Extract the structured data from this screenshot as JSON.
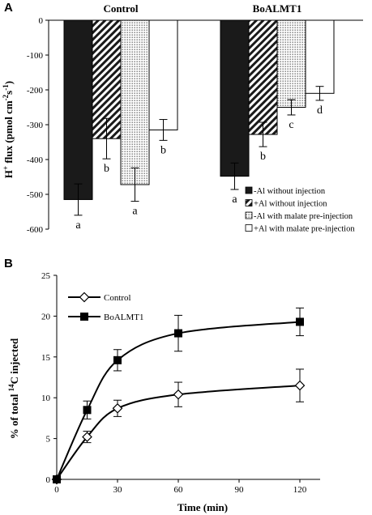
{
  "chart_data": [
    {
      "panel": "A",
      "type": "bar",
      "groups": [
        "Control",
        "BoALMT1"
      ],
      "ylabel": "H⁺ flux (pmol cm⁻²s⁻¹)",
      "ylabel_parts": [
        "H",
        "+",
        " flux (pmol cm",
        "-2",
        "s",
        "-1",
        ")"
      ],
      "ylim": [
        -600,
        0
      ],
      "yticks": [
        0,
        -100,
        -200,
        -300,
        -400,
        -500,
        -600
      ],
      "legend_position": "bottom-right",
      "series": [
        {
          "name": "-Al without injection",
          "color": "#1a1a1a",
          "pattern": "solid",
          "values": [
            -515,
            -448
          ],
          "errors": [
            45,
            38
          ],
          "letters": [
            "a",
            "a"
          ]
        },
        {
          "name": "+Al without injection",
          "color": "#ffffff",
          "pattern": "diagonal-stripes",
          "values": [
            -340,
            -328
          ],
          "errors": [
            58,
            35
          ],
          "letters": [
            "b",
            "b"
          ]
        },
        {
          "name": "-Al with malate pre-injection",
          "color": "#ffffff",
          "pattern": "dots",
          "values": [
            -472,
            -250
          ],
          "errors": [
            48,
            22
          ],
          "letters": [
            "a",
            "c"
          ]
        },
        {
          "name": "+Al with malate pre-injection",
          "color": "#ffffff",
          "pattern": "open",
          "values": [
            -315,
            -210
          ],
          "errors": [
            30,
            20
          ],
          "letters": [
            "b",
            "d"
          ]
        }
      ]
    },
    {
      "panel": "B",
      "type": "line",
      "xlabel": "Time (min)",
      "ylabel": "% of total ¹⁴C injected",
      "ylabel_parts": [
        "% of total ",
        "14",
        "C injected"
      ],
      "xlim": [
        0,
        130
      ],
      "ylim": [
        0,
        25
      ],
      "xticks": [
        0,
        30,
        60,
        90,
        120
      ],
      "yticks": [
        0,
        5,
        10,
        15,
        20,
        25
      ],
      "legend_position": "top-left",
      "series": [
        {
          "name": "Control",
          "marker": "open-diamond",
          "x": [
            0,
            15,
            30,
            60,
            120
          ],
          "y": [
            0,
            5.2,
            8.7,
            10.4,
            11.5
          ],
          "errors": [
            0,
            0.7,
            1.0,
            1.5,
            2.0
          ]
        },
        {
          "name": "BoALMT1",
          "marker": "filled-square",
          "x": [
            0,
            15,
            30,
            60,
            120
          ],
          "y": [
            0,
            8.5,
            14.6,
            17.9,
            19.3
          ],
          "errors": [
            0,
            1.1,
            1.3,
            2.2,
            1.7
          ]
        }
      ]
    }
  ]
}
